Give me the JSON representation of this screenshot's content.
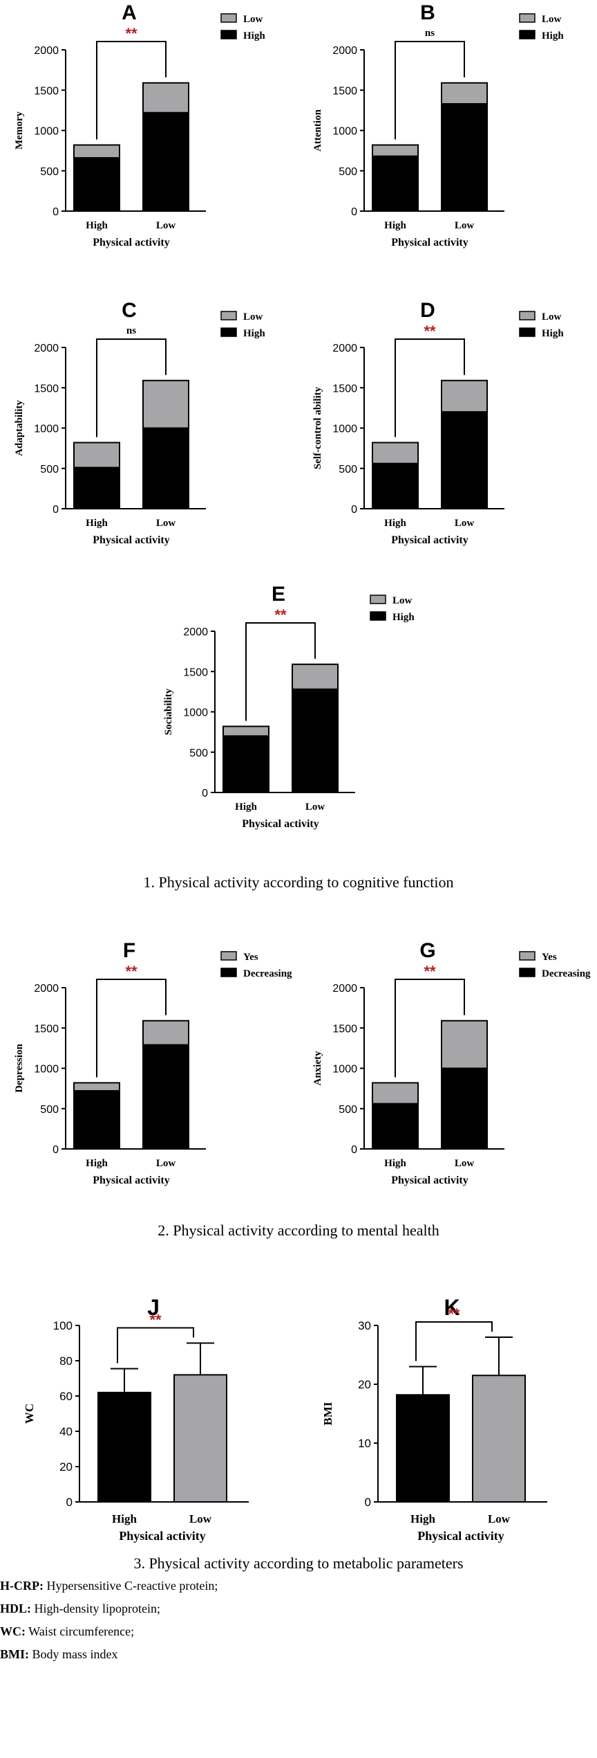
{
  "colors": {
    "dark": "#000000",
    "light": "#a6a6a8",
    "sig": "#b22222"
  },
  "panels": [
    {
      "id": "A",
      "type": "stacked",
      "label": "A",
      "ylabel": "Memory",
      "xlabel": "Physical activity",
      "categories": [
        "High",
        "Low"
      ],
      "ylim": [
        0,
        2000
      ],
      "yticks": [
        0,
        500,
        1000,
        1500,
        2000
      ],
      "legend": [
        "Low",
        "High"
      ],
      "series": [
        {
          "name": "High",
          "values": [
            660,
            1220
          ]
        },
        {
          "name": "Low",
          "values": [
            160,
            370
          ]
        }
      ],
      "sig": "**"
    },
    {
      "id": "B",
      "type": "stacked",
      "label": "B",
      "ylabel": "Attention",
      "xlabel": "Physical activity",
      "categories": [
        "High",
        "Low"
      ],
      "ylim": [
        0,
        2000
      ],
      "yticks": [
        0,
        500,
        1000,
        1500,
        2000
      ],
      "legend": [
        "Low",
        "High"
      ],
      "series": [
        {
          "name": "High",
          "values": [
            680,
            1330
          ]
        },
        {
          "name": "Low",
          "values": [
            140,
            260
          ]
        }
      ],
      "sig": "ns"
    },
    {
      "id": "C",
      "type": "stacked",
      "label": "C",
      "ylabel": "Adaptability",
      "xlabel": "Physical activity",
      "categories": [
        "High",
        "Low"
      ],
      "ylim": [
        0,
        2000
      ],
      "yticks": [
        0,
        500,
        1000,
        1500,
        2000
      ],
      "legend": [
        "Low",
        "High"
      ],
      "series": [
        {
          "name": "High",
          "values": [
            510,
            1000
          ]
        },
        {
          "name": "Low",
          "values": [
            310,
            590
          ]
        }
      ],
      "sig": "ns"
    },
    {
      "id": "D",
      "type": "stacked",
      "label": "D",
      "ylabel": "Self-control ability",
      "xlabel": "Physical activity",
      "categories": [
        "High",
        "Low"
      ],
      "ylim": [
        0,
        2000
      ],
      "yticks": [
        0,
        500,
        1000,
        1500,
        2000
      ],
      "legend": [
        "Low",
        "High"
      ],
      "series": [
        {
          "name": "High",
          "values": [
            560,
            1200
          ]
        },
        {
          "name": "Low",
          "values": [
            260,
            390
          ]
        }
      ],
      "sig": "**"
    },
    {
      "id": "E",
      "type": "stacked",
      "label": "E",
      "ylabel": "Sociability",
      "xlabel": "Physical activity",
      "categories": [
        "High",
        "Low"
      ],
      "ylim": [
        0,
        2000
      ],
      "yticks": [
        0,
        500,
        1000,
        1500,
        2000
      ],
      "legend": [
        "Low",
        "High"
      ],
      "series": [
        {
          "name": "High",
          "values": [
            700,
            1280
          ]
        },
        {
          "name": "Low",
          "values": [
            120,
            310
          ]
        }
      ],
      "sig": "**"
    },
    {
      "id": "F",
      "type": "stacked",
      "label": "F",
      "ylabel": "Depression",
      "xlabel": "Physical activity",
      "categories": [
        "High",
        "Low"
      ],
      "ylim": [
        0,
        2000
      ],
      "yticks": [
        0,
        500,
        1000,
        1500,
        2000
      ],
      "legend": [
        "Yes",
        "Decreasing"
      ],
      "series": [
        {
          "name": "Decreasing",
          "values": [
            720,
            1290
          ]
        },
        {
          "name": "Yes",
          "values": [
            100,
            300
          ]
        }
      ],
      "sig": "**"
    },
    {
      "id": "G",
      "type": "stacked",
      "label": "G",
      "ylabel": "Anxiety",
      "xlabel": "Physical activity",
      "categories": [
        "High",
        "Low"
      ],
      "ylim": [
        0,
        2000
      ],
      "yticks": [
        0,
        500,
        1000,
        1500,
        2000
      ],
      "legend": [
        "Yes",
        "Decreasing"
      ],
      "series": [
        {
          "name": "Decreasing",
          "values": [
            560,
            1000
          ]
        },
        {
          "name": "Yes",
          "values": [
            260,
            590
          ]
        }
      ],
      "sig": "**"
    },
    {
      "id": "J",
      "type": "error",
      "label": "J",
      "ylabel": "WC",
      "xlabel": "Physical activity",
      "categories": [
        "High",
        "Low"
      ],
      "ylim": [
        0,
        100
      ],
      "yticks": [
        0,
        20,
        40,
        60,
        80,
        100
      ],
      "values": [
        62,
        72
      ],
      "errors": [
        13.5,
        18
      ],
      "sig": "**"
    },
    {
      "id": "K",
      "type": "error",
      "label": "K",
      "ylabel": "BMI",
      "xlabel": "Physical activity",
      "categories": [
        "High",
        "Low"
      ],
      "ylim": [
        0,
        30
      ],
      "yticks": [
        0,
        10,
        20,
        30
      ],
      "values": [
        18.2,
        21.5
      ],
      "errors": [
        4.8,
        6.5
      ],
      "sig": "**"
    }
  ],
  "captions": {
    "c1": "1. Physical activity according to cognitive function",
    "c2": "2. Physical activity according to mental health",
    "c3": "3. Physical activity according to metabolic parameters"
  },
  "abbreviations": [
    {
      "abbr": "H-CRP:",
      "text": " Hypersensitive C-reactive protein;"
    },
    {
      "abbr": "HDL:",
      "text": " High-density lipoprotein;"
    },
    {
      "abbr": "WC:",
      "text": " Waist circumference;"
    },
    {
      "abbr": "BMI:",
      "text": " Body mass index"
    }
  ]
}
